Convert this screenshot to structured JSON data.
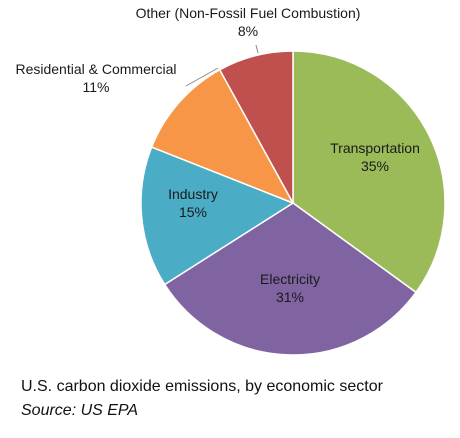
{
  "chart_data": {
    "type": "pie",
    "categories": [
      "Transportation",
      "Electricity",
      "Industry",
      "Residential & Commercial",
      "Other (Non-Fossil Fuel Combustion)"
    ],
    "values": [
      35,
      31,
      15,
      11,
      8
    ],
    "value_labels": [
      "35%",
      "31%",
      "15%",
      "11%",
      "8%"
    ],
    "colors": [
      "#9BBB59",
      "#8064A2",
      "#4BACC6",
      "#F79646",
      "#C0504D"
    ],
    "start": "12 o'clock, clockwise",
    "legend": "none"
  },
  "caption": {
    "line1": "U.S. carbon dioxide emissions, by economic sector",
    "line2": "Source: US EPA"
  }
}
